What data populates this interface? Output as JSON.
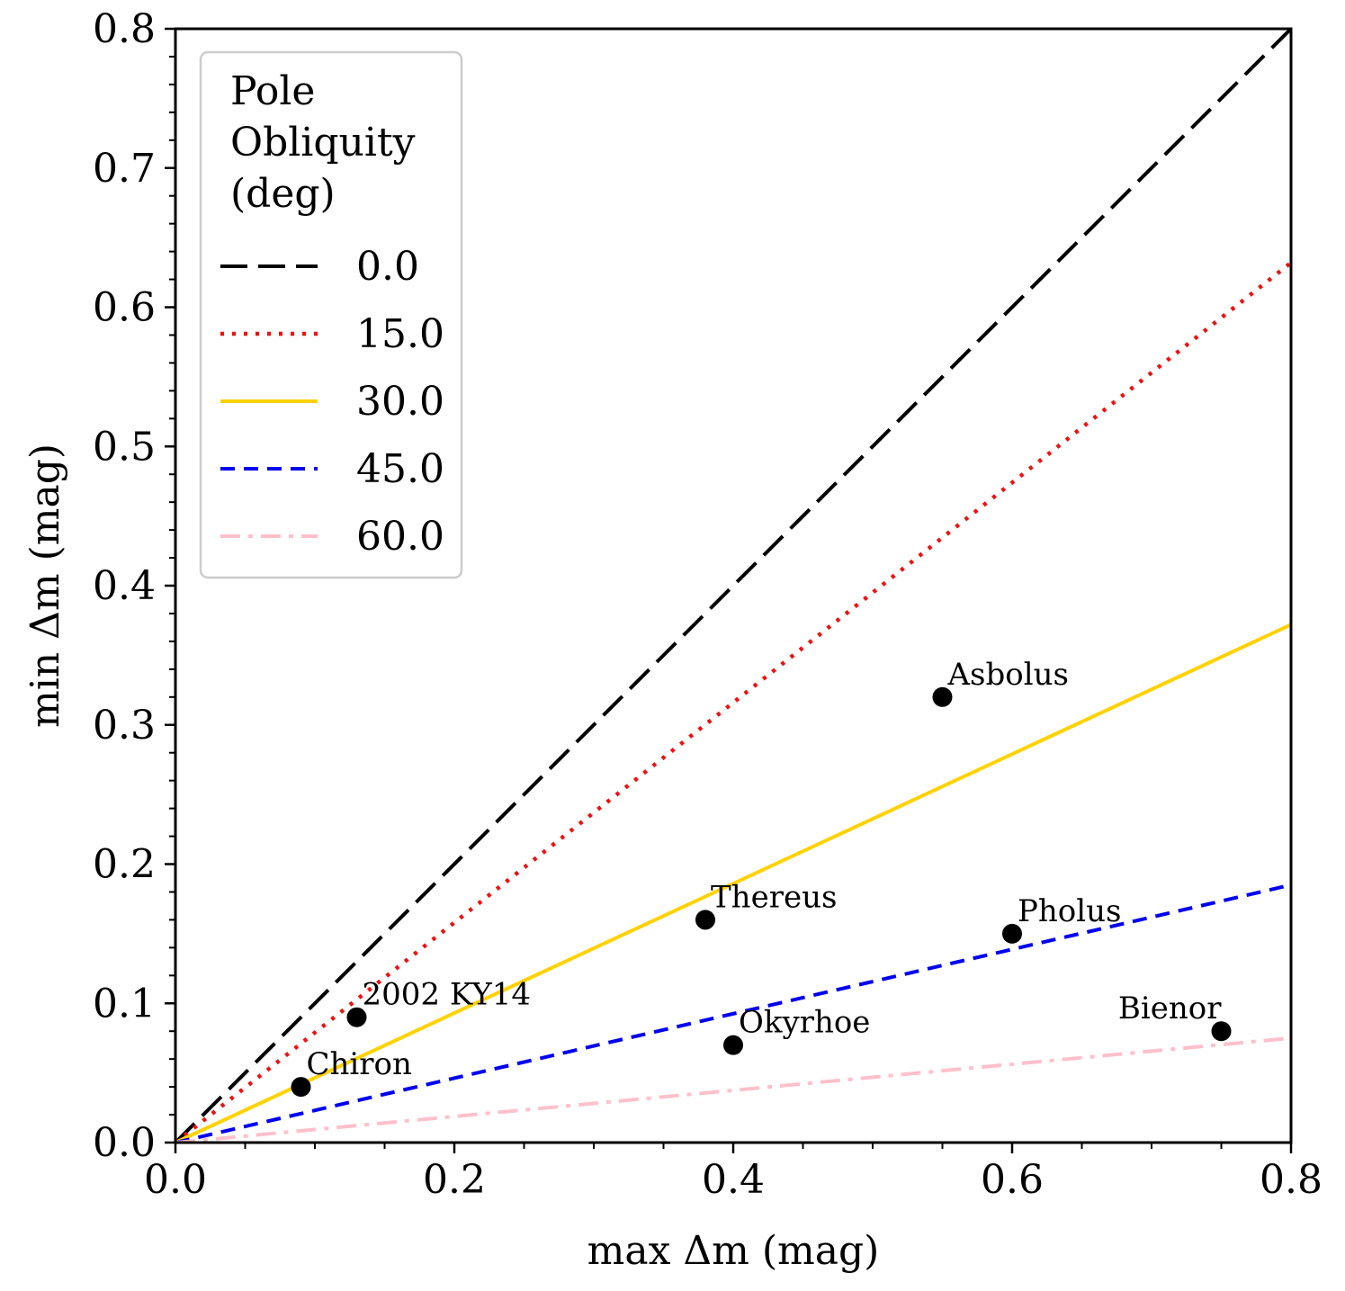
{
  "chart_data": {
    "type": "line",
    "xlabel": "max Δm (mag)",
    "ylabel": "min Δm (mag)",
    "xlim": [
      0.0,
      0.8
    ],
    "ylim": [
      0.0,
      0.8
    ],
    "x_ticks": [
      "0.0",
      "0.2",
      "0.4",
      "0.6",
      "0.8"
    ],
    "y_ticks": [
      "0.0",
      "0.1",
      "0.2",
      "0.3",
      "0.4",
      "0.5",
      "0.6",
      "0.7",
      "0.8"
    ],
    "legend": {
      "title_lines": [
        "Pole",
        "Obliquity",
        "(deg)"
      ],
      "placement": "top-left"
    },
    "series": [
      {
        "name": "0.0",
        "slope": 1.0,
        "color": "#000000",
        "style": "long-dash"
      },
      {
        "name": "15.0",
        "slope": 0.79,
        "color": "#ee1111",
        "style": "dotted"
      },
      {
        "name": "30.0",
        "slope": 0.465,
        "color": "#ffd200",
        "style": "solid"
      },
      {
        "name": "45.0",
        "slope": 0.2313,
        "color": "#0000ee",
        "style": "dashed"
      },
      {
        "name": "60.0",
        "slope": 0.0938,
        "color": "#ffc0cb",
        "style": "dash-dot"
      }
    ],
    "points": [
      {
        "label": "Chiron",
        "x": 0.09,
        "y": 0.04,
        "anchor": "right"
      },
      {
        "label": "2002 KY14",
        "x": 0.13,
        "y": 0.09,
        "anchor": "right"
      },
      {
        "label": "Thereus",
        "x": 0.38,
        "y": 0.16,
        "anchor": "right"
      },
      {
        "label": "Okyrhoe",
        "x": 0.4,
        "y": 0.07,
        "anchor": "right"
      },
      {
        "label": "Asbolus",
        "x": 0.55,
        "y": 0.32,
        "anchor": "right"
      },
      {
        "label": "Pholus",
        "x": 0.6,
        "y": 0.15,
        "anchor": "right"
      },
      {
        "label": "Bienor",
        "x": 0.75,
        "y": 0.08,
        "anchor": "left"
      }
    ]
  }
}
